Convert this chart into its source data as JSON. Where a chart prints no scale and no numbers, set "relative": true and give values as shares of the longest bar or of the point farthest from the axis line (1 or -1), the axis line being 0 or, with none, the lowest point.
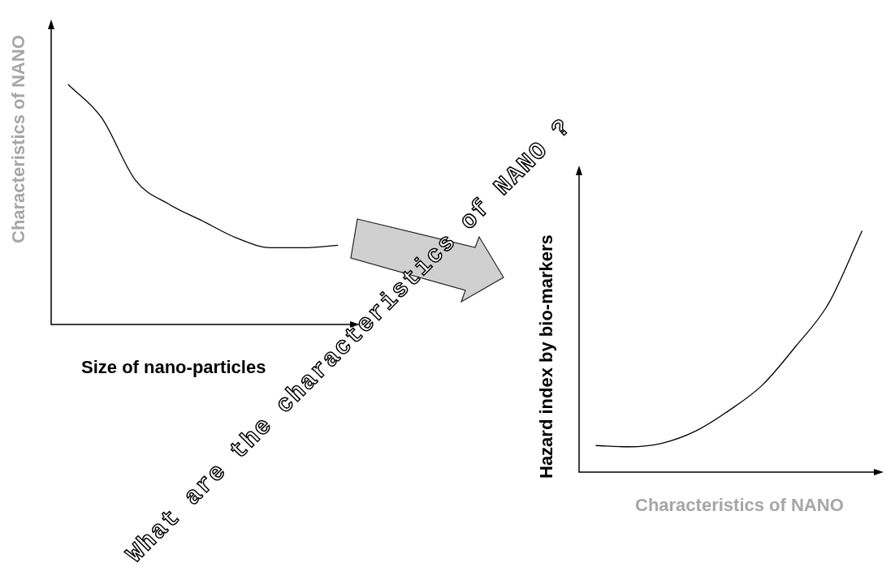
{
  "chart_data": [
    {
      "type": "line",
      "xlabel": "Size of nano-particles",
      "ylabel": "Characteristics of NANO",
      "relative": true,
      "categories": [
        null,
        null,
        null,
        null,
        null,
        null,
        null,
        null,
        null
      ],
      "marker": "none",
      "legend": false,
      "series": [
        {
          "color": "#000000",
          "values": [
            1,
            0.86,
            0.6,
            0.5,
            0.43,
            0.36,
            0.32,
            0.32,
            0.33
          ]
        }
      ],
      "annotations": [
        "What are the characteristics of NANO ?"
      ]
    },
    {
      "type": "line",
      "xlabel": "Characteristics of NANO",
      "ylabel": "Hazard index by bio-markers",
      "relative": true,
      "categories": [
        null,
        null,
        null,
        null,
        null,
        null,
        null,
        null,
        null
      ],
      "marker": "none",
      "legend": false,
      "series": [
        {
          "color": "#000000",
          "values": [
            0.11,
            0.105,
            0.12,
            0.17,
            0.255,
            0.36,
            0.52,
            0.7,
            1
          ]
        }
      ]
    }
  ]
}
